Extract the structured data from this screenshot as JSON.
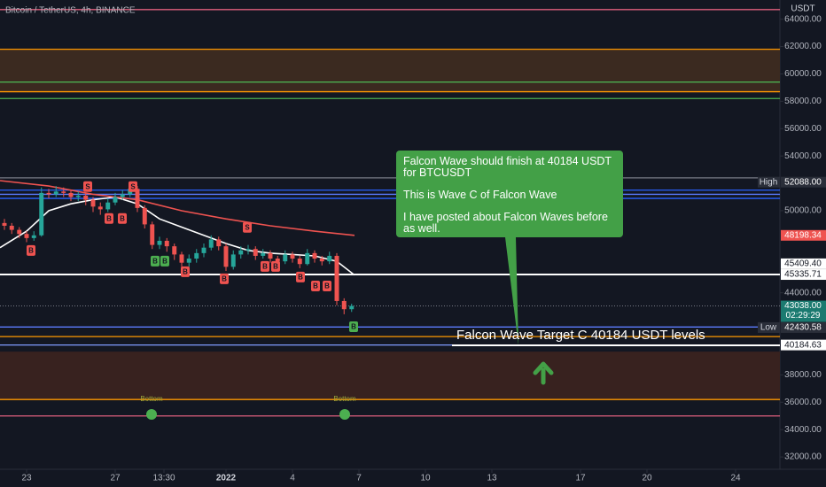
{
  "chart_data": {
    "type": "candlestick",
    "title": "Bitcoin / TetherUS, 4h, BINANCE",
    "y_axis_label": "USDT",
    "xlim": [
      -1.2,
      34
    ],
    "ylim": [
      31100,
      65400
    ],
    "xticks": [
      {
        "value": 0,
        "label": "23"
      },
      {
        "value": 4,
        "label": "27"
      },
      {
        "value": 6.2,
        "label": "13:30"
      },
      {
        "value": 9,
        "label": "2022"
      },
      {
        "value": 12,
        "label": "4"
      },
      {
        "value": 15,
        "label": "7"
      },
      {
        "value": 18,
        "label": "10"
      },
      {
        "value": 21,
        "label": "13"
      },
      {
        "value": 25,
        "label": "17"
      },
      {
        "value": 28,
        "label": "20"
      },
      {
        "value": 32,
        "label": "24"
      }
    ],
    "yticks": [
      {
        "value": 64000,
        "label": "64000.00"
      },
      {
        "value": 62000,
        "label": "62000.00"
      },
      {
        "value": 60000,
        "label": "60000.00"
      },
      {
        "value": 58000,
        "label": "58000.00"
      },
      {
        "value": 56000,
        "label": "56000.00"
      },
      {
        "value": 54000,
        "label": "54000.00"
      },
      {
        "value": 50000,
        "label": "50000.00"
      },
      {
        "value": 44000,
        "label": "44000.00"
      },
      {
        "value": 38000,
        "label": "38000.00"
      },
      {
        "value": 36000,
        "label": "36000.00"
      },
      {
        "value": 34000,
        "label": "34000.00"
      },
      {
        "value": 32000,
        "label": "32000.00"
      }
    ],
    "grid": false,
    "up_color": "#26a69a",
    "down_color": "#ef5350",
    "x": [
      -1,
      -0.67,
      -0.33,
      0,
      0.33,
      0.67,
      1,
      1.33,
      1.67,
      2,
      2.33,
      2.67,
      3,
      3.33,
      3.67,
      4,
      4.33,
      4.67,
      5,
      5.33,
      5.67,
      6,
      6.33,
      6.67,
      7,
      7.33,
      7.67,
      8,
      8.33,
      8.67,
      9,
      9.33,
      9.67,
      10,
      10.33,
      10.67,
      11,
      11.33,
      11.67,
      12,
      12.33,
      12.67,
      13,
      13.33,
      13.67,
      14,
      14.33,
      14.67
    ],
    "open": [
      49100,
      48900,
      48600,
      48300,
      48000,
      48200,
      51300,
      51200,
      51400,
      51300,
      51000,
      51100,
      50800,
      50300,
      50100,
      50600,
      51000,
      51200,
      51600,
      50200,
      49000,
      47500,
      47800,
      47400,
      46800,
      46200,
      46500,
      46900,
      47300,
      47900,
      47400,
      45900,
      46800,
      47100,
      47200,
      46700,
      46900,
      46500,
      46300,
      46800,
      46500,
      46100,
      46900,
      46500,
      46300,
      46700,
      43400,
      42800
    ],
    "high": [
      49400,
      49100,
      48800,
      48500,
      48500,
      51700,
      51600,
      51800,
      51700,
      51500,
      51400,
      51300,
      51000,
      50600,
      50900,
      51300,
      51500,
      52088,
      51800,
      50400,
      49200,
      48100,
      48000,
      47600,
      47000,
      46800,
      47200,
      47600,
      48200,
      48100,
      47600,
      47100,
      47400,
      47500,
      47400,
      47200,
      47100,
      46700,
      47100,
      47000,
      46700,
      47200,
      47100,
      46700,
      47000,
      46900,
      43600,
      43200
    ],
    "low": [
      48600,
      48300,
      48000,
      47700,
      47800,
      48100,
      50900,
      51000,
      51000,
      50700,
      50700,
      50400,
      49900,
      49700,
      49900,
      50400,
      50800,
      51000,
      49900,
      48700,
      47200,
      47200,
      47000,
      46400,
      45800,
      45900,
      46200,
      46600,
      47100,
      47100,
      45600,
      45700,
      46500,
      46800,
      46400,
      46500,
      46200,
      46000,
      46100,
      46200,
      45800,
      46000,
      46200,
      46000,
      46100,
      43100,
      42430.58,
      42600
    ],
    "close": [
      48900,
      48600,
      48300,
      48000,
      48200,
      51300,
      51200,
      51400,
      51300,
      51000,
      51100,
      50800,
      50300,
      50100,
      50600,
      51000,
      51200,
      51600,
      50200,
      49000,
      47500,
      47800,
      47400,
      46800,
      46200,
      46500,
      46900,
      47300,
      47900,
      47400,
      45900,
      46800,
      47100,
      47200,
      46700,
      46900,
      46500,
      46300,
      46800,
      46500,
      46100,
      46900,
      46500,
      46300,
      46700,
      43400,
      42800,
      43038
    ],
    "series": [
      {
        "color": "#ffffff",
        "x": [
          -1.2,
          0,
          1,
          2,
          3,
          4,
          5,
          6,
          7,
          8,
          9,
          10,
          11,
          12,
          13,
          14,
          14.8
        ],
        "values": [
          47300,
          48500,
          50000,
          50500,
          50800,
          51000,
          50500,
          49400,
          48800,
          48200,
          47600,
          47100,
          46900,
          46800,
          46700,
          46300,
          45300
        ]
      },
      {
        "color": "#ef5350",
        "x": [
          -1.2,
          1,
          3,
          5,
          7,
          9,
          11,
          13,
          14.8
        ],
        "values": [
          52200,
          51800,
          51200,
          50800,
          50000,
          49400,
          48900,
          48500,
          48198.34
        ]
      }
    ],
    "zones": [
      {
        "from": 61800,
        "to": 58600,
        "color": "#3b2a20"
      },
      {
        "from": 39700,
        "to": 36200,
        "color": "#38221f"
      }
    ],
    "levels": [
      {
        "value": 64700,
        "color": "#e0607e"
      },
      {
        "value": 61800,
        "color": "#ff9800"
      },
      {
        "value": 59400,
        "color": "#4caf50"
      },
      {
        "value": 58700,
        "color": "#ff9800"
      },
      {
        "value": 58200,
        "color": "#4caf50"
      },
      {
        "value": 52400,
        "color": "#787b86"
      },
      {
        "value": 51500,
        "color": "#2962ff"
      },
      {
        "value": 51200,
        "color": "#5b7cff"
      },
      {
        "value": 50900,
        "color": "#2962ff"
      },
      {
        "value": 45335.71,
        "color": "#ffffff"
      },
      {
        "value": 41500,
        "color": "#5b7cff"
      },
      {
        "value": 40800,
        "color": "#ff9800"
      },
      {
        "value": 40184.63,
        "color": "#7f9cff"
      },
      {
        "value": 36200,
        "color": "#ff9800"
      },
      {
        "value": 35000,
        "color": "#e0607e"
      }
    ],
    "price_labels": [
      {
        "value": 52088,
        "label": "52088.00",
        "tag": "High",
        "bg": "#2a2e39",
        "fg": "#ffffff"
      },
      {
        "value": 48198.34,
        "label": "48198.34",
        "bg": "#ef5350",
        "fg": "#ffffff"
      },
      {
        "value": 45409.4,
        "label": "45409.40",
        "bg": "#ffffff",
        "fg": "#131722"
      },
      {
        "value": 45335.71,
        "label": "45335.71",
        "bg": "#ffffff",
        "fg": "#131722"
      },
      {
        "value": 43038,
        "label": "43038.00",
        "sub": "02:29:29",
        "bg": "#1b7a70",
        "fg": "#ffffff"
      },
      {
        "value": 42430.58,
        "label": "42430.58",
        "tag": "Low",
        "bg": "#2a2e39",
        "fg": "#ffffff"
      },
      {
        "value": 40184.63,
        "label": "40184.63",
        "bg": "#ffffff",
        "fg": "#131722"
      }
    ],
    "markers": [
      {
        "text": "B",
        "color": "#ef5350",
        "x": 0.2,
        "y": 47090
      },
      {
        "text": "S",
        "color": "#ef5350",
        "x": 2.76,
        "y": 51760
      },
      {
        "text": "B",
        "color": "#ef5350",
        "x": 3.72,
        "y": 49430
      },
      {
        "text": "B",
        "color": "#ef5350",
        "x": 4.32,
        "y": 49430
      },
      {
        "text": "S",
        "color": "#ef5350",
        "x": 4.8,
        "y": 51760
      },
      {
        "text": "B",
        "color": "#4caf50",
        "x": 5.8,
        "y": 46320
      },
      {
        "text": "B",
        "color": "#4caf50",
        "x": 6.24,
        "y": 46320
      },
      {
        "text": "B",
        "color": "#ef5350",
        "x": 7.16,
        "y": 45540
      },
      {
        "text": "B",
        "color": "#ef5350",
        "x": 8.92,
        "y": 45020
      },
      {
        "text": "S",
        "color": "#ef5350",
        "x": 9.96,
        "y": 48780
      },
      {
        "text": "B",
        "color": "#ef5350",
        "x": 10.76,
        "y": 45930
      },
      {
        "text": "B",
        "color": "#ef5350",
        "x": 11.24,
        "y": 45930
      },
      {
        "text": "B",
        "color": "#ef5350",
        "x": 12.36,
        "y": 45150
      },
      {
        "text": "B",
        "color": "#ef5350",
        "x": 13.04,
        "y": 44500
      },
      {
        "text": "B",
        "color": "#ef5350",
        "x": 13.56,
        "y": 44500
      },
      {
        "text": "B",
        "color": "#4caf50",
        "x": 14.76,
        "y": 41520
      }
    ],
    "bottoms": [
      {
        "label": "Bottom",
        "x": 5.64,
        "y": 35110
      },
      {
        "label": "Bottom",
        "x": 14.36,
        "y": 35110
      }
    ],
    "callout": [
      "Falcon Wave should finish at 40184 USDT for BTCUSDT",
      "This is Wave C of Falcon Wave",
      "I have posted about Falcon Waves before as well."
    ],
    "target_text": "Falcon Wave Target C 40184 USDT levels"
  }
}
